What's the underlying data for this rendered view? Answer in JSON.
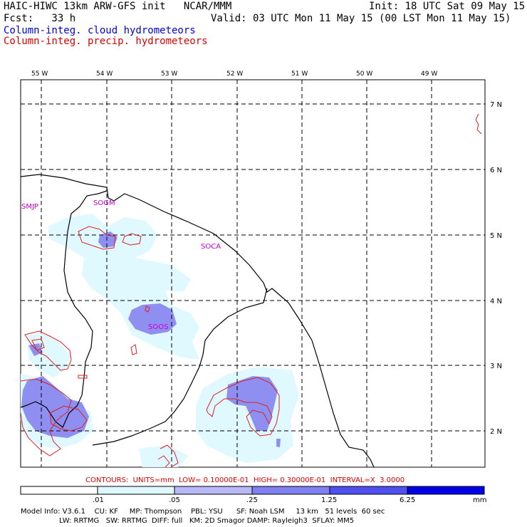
{
  "header": {
    "title": "HAIC-HIWC 13km ARW-GFS init   NCAR/MMM",
    "init": "Init: 18 UTC Sat 09 May 15",
    "fcst": "Fcst:   33 h",
    "valid": "Valid: 03 UTC Mon 11 May 15 (00 LST Mon 11 May 15)",
    "legend_cloud": "Column-integ. cloud hydrometeors",
    "legend_precip": "Column-integ. precip. hydrometeors"
  },
  "map": {
    "lon_labels": [
      "55 W",
      "54 W",
      "53 W",
      "52 W",
      "51 W",
      "50 W",
      "49 W"
    ],
    "lat_labels": [
      "7 N",
      "6 N",
      "5 N",
      "4 N",
      "3 N",
      "2 N"
    ],
    "stations": [
      "SMJP",
      "SOGM",
      "SOCA",
      "SOOS"
    ]
  },
  "contours_note": "CONTOURS:  UNITS=mm  LOW= 0.10000E-01  HIGH= 0.30000E-01  INTERVAL=X  3.0000",
  "colorbar": {
    "ticks": [
      ".01",
      ".05",
      ".25",
      "1.25",
      "6.25"
    ],
    "units": "mm",
    "colors": [
      "#ffffff",
      "#e0f8ff",
      "#b8b8f8",
      "#8080f0",
      "#5050f0",
      "#0000e8"
    ]
  },
  "footer": {
    "line1": "Model Info: V3.6.1    CU: KF     MP: Thompson    PBL: YSU      SF: Noah LSM     13 km   51 levels  60 sec",
    "line2": "                 LW: RRTMG   SW: RRTMG  DIFF: full   KM: 2D Smagor DAMP: Rayleigh3  SFLAY: MM5"
  }
}
